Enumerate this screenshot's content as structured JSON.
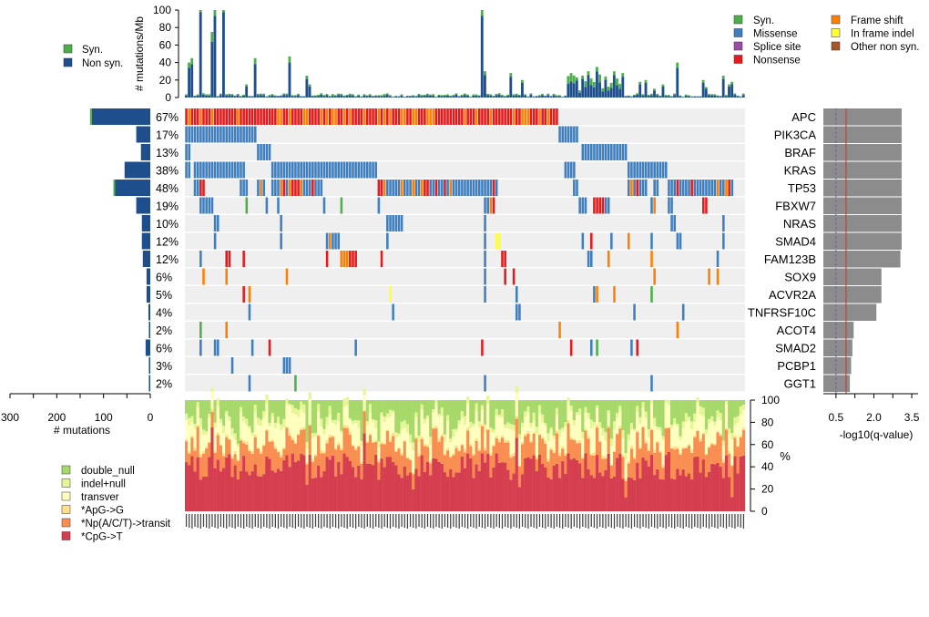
{
  "chart_data": {
    "type": "oncoprint",
    "top_panel": {
      "ylabel": "# mutations/Mb",
      "yticks": [
        0,
        20,
        40,
        60,
        80,
        100
      ],
      "ylim": [
        0,
        100
      ],
      "legend": [
        {
          "label": "Syn.",
          "color": "#4daf4a"
        },
        {
          "label": "Non syn.",
          "color": "#1f4e8c"
        }
      ]
    },
    "type_legend": [
      {
        "label": "Syn.",
        "color": "#4daf4a"
      },
      {
        "label": "Missense",
        "color": "#3f7fbf"
      },
      {
        "label": "Splice site",
        "color": "#984ea3"
      },
      {
        "label": "Nonsense",
        "color": "#e41a1c"
      },
      {
        "label": "Frame shift",
        "color": "#ff7f00"
      },
      {
        "label": "In frame indel",
        "color": "#ffff33"
      },
      {
        "label": "Other non syn.",
        "color": "#a65628"
      }
    ],
    "genes": [
      {
        "name": "APC",
        "pct": "67%",
        "count": 125,
        "q": 3.1
      },
      {
        "name": "PIK3CA",
        "pct": "17%",
        "count": 30,
        "q": 3.1
      },
      {
        "name": "BRAF",
        "pct": "13%",
        "count": 20,
        "q": 3.1
      },
      {
        "name": "KRAS",
        "pct": "38%",
        "count": 55,
        "q": 3.1
      },
      {
        "name": "TP53",
        "pct": "48%",
        "count": 75,
        "q": 3.1
      },
      {
        "name": "FBXW7",
        "pct": "19%",
        "count": 30,
        "q": 3.1
      },
      {
        "name": "NRAS",
        "pct": "10%",
        "count": 18,
        "q": 3.1
      },
      {
        "name": "SMAD4",
        "pct": "12%",
        "count": 18,
        "q": 3.1
      },
      {
        "name": "FAM123B",
        "pct": "12%",
        "count": 16,
        "q": 3.05
      },
      {
        "name": "SOX9",
        "pct": "6%",
        "count": 8,
        "q": 2.3
      },
      {
        "name": "ACVR2A",
        "pct": "5%",
        "count": 8,
        "q": 2.3
      },
      {
        "name": "TNFRSF10C",
        "pct": "4%",
        "count": 4,
        "q": 2.1
      },
      {
        "name": "ACOT4",
        "pct": "2%",
        "count": 3,
        "q": 1.2
      },
      {
        "name": "SMAD2",
        "pct": "6%",
        "count": 10,
        "q": 1.15
      },
      {
        "name": "PCBP1",
        "pct": "3%",
        "count": 3,
        "q": 1.1
      },
      {
        "name": "GGT1",
        "pct": "2%",
        "count": 3,
        "q": 1.05
      }
    ],
    "left_axis": {
      "label": "# mutations",
      "ticks": [
        300,
        200,
        100,
        0
      ],
      "lim": [
        300,
        0
      ]
    },
    "right_axis": {
      "label": "-log10(q-value)",
      "ticks": [
        "0.5",
        "2.0",
        "3.5"
      ],
      "lim": [
        0,
        3.75
      ],
      "line_red": 0.9,
      "line_purple": 0.5
    },
    "bottom_panel": {
      "ylabel": "%",
      "yticks": [
        0,
        20,
        40,
        60,
        80,
        100
      ],
      "legend": [
        {
          "label": "double_null",
          "color": "#a6d96a"
        },
        {
          "label": "indel+null",
          "color": "#e6f598"
        },
        {
          "label": "transver",
          "color": "#ffffbf"
        },
        {
          "label": "*ApG->G",
          "color": "#fee08b"
        },
        {
          "label": "*Np(A/C/T)->transit",
          "color": "#f98e52"
        },
        {
          "label": "*CpG->T",
          "color": "#d53e4f"
        }
      ]
    },
    "n_samples": 195
  }
}
